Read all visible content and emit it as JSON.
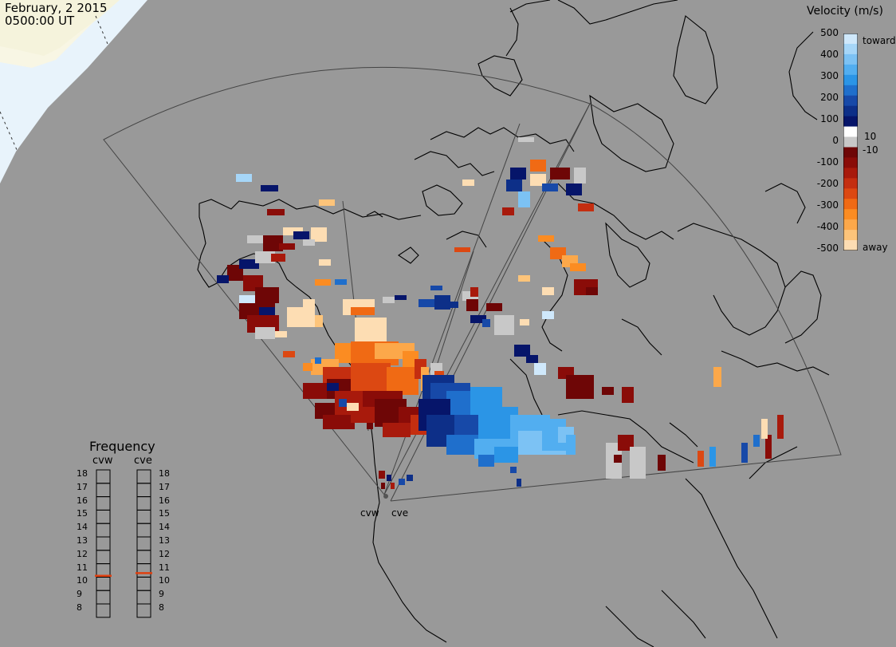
{
  "header": {
    "date": "February, 2 2015",
    "time": "0500:00 UT"
  },
  "colors": {
    "background": "#999999",
    "land": "#999999",
    "daylight": "#f8f6e4",
    "ice_shadow": "#e8f3fb",
    "coast": "#000000",
    "fov_outline": "#444444",
    "freq_marker": "#e04010"
  },
  "velocity_scale": {
    "title": "Velocity (m/s)",
    "ticks": [
      "500",
      "400",
      "300",
      "200",
      "100",
      "0",
      "-100",
      "-200",
      "-300",
      "-400",
      "-500"
    ],
    "toward_label": "toward",
    "away_label": "away",
    "inner_pos": "10",
    "inner_neg": "-10"
  },
  "frequency_panel": {
    "title": "Frequency",
    "left_label": "cvw",
    "right_label": "cve",
    "values": [
      "18",
      "17",
      "16",
      "15",
      "14",
      "13",
      "12",
      "11",
      "10",
      "9",
      "8"
    ],
    "cvw_frequency": 10.6,
    "cve_frequency": 10.8
  },
  "sites": {
    "west": "cvw",
    "east": "cve"
  }
}
